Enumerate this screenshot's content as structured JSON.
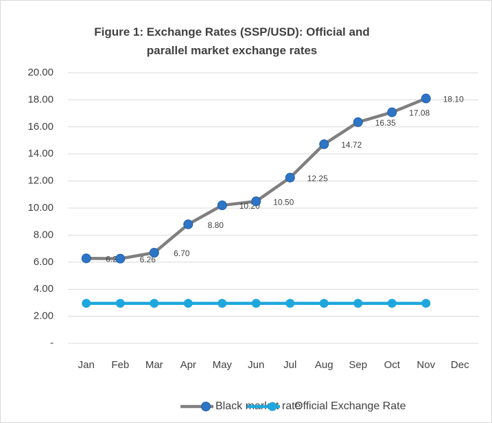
{
  "chart_data": {
    "type": "line",
    "title": "Figure 1: Exchange Rates (SSP/USD): Official and parallel market exchange rates",
    "categories": [
      "Jan",
      "Feb",
      "Mar",
      "Apr",
      "May",
      "Jun",
      "Jul",
      "Aug",
      "Sep",
      "Oct",
      "Nov",
      "Dec"
    ],
    "series": [
      {
        "name": "Black market rate",
        "color": "#7f7f7f",
        "marker_color": "#2e75c6",
        "values": [
          6.28,
          6.26,
          6.7,
          8.8,
          10.2,
          10.5,
          12.25,
          14.72,
          16.35,
          17.08,
          18.1,
          null
        ],
        "value_labels": [
          "6.28",
          "6.26",
          "6.70",
          "8.80",
          "10.20",
          "10.50",
          "12.25",
          "14.72",
          "16.35",
          "17.08",
          "18.10",
          null
        ]
      },
      {
        "name": "Official Exchange Rate",
        "color": "#1ea7dd",
        "marker_color": "#1ea7dd",
        "values": [
          2.96,
          2.96,
          2.96,
          2.96,
          2.96,
          2.96,
          2.96,
          2.96,
          2.96,
          2.96,
          2.96,
          null
        ]
      }
    ],
    "ylim": [
      0,
      20
    ],
    "yticks": [
      {
        "value": 0,
        "label": "-"
      },
      {
        "value": 2,
        "label": "2.00"
      },
      {
        "value": 4,
        "label": "4.00"
      },
      {
        "value": 6,
        "label": "6.00"
      },
      {
        "value": 8,
        "label": "8.00"
      },
      {
        "value": 10,
        "label": "10.00"
      },
      {
        "value": 12,
        "label": "12.00"
      },
      {
        "value": 14,
        "label": "14.00"
      },
      {
        "value": 16,
        "label": "16.00"
      },
      {
        "value": 18,
        "label": "18.00"
      },
      {
        "value": 20,
        "label": "20.00"
      }
    ],
    "grid": true,
    "legend": "bottom"
  }
}
